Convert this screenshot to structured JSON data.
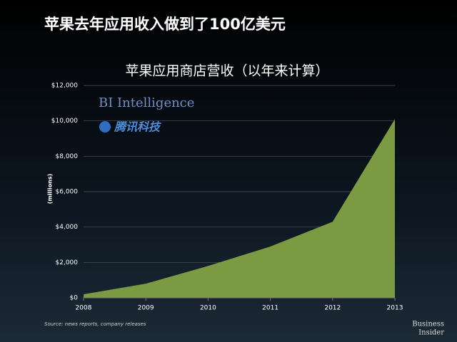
{
  "header": {
    "title": "苹果去年应用收入做到了100亿美元"
  },
  "chart_data": {
    "type": "area",
    "title": "苹果应用商店营收（以年来计算）",
    "ylabel": "(millions)",
    "x": [
      2008,
      2009,
      2010,
      2011,
      2012,
      2013
    ],
    "values": [
      200,
      800,
      1800,
      2900,
      4300,
      10100
    ],
    "color": "#7b9a41",
    "xlim": [
      2008,
      2013
    ],
    "xticks": [
      2008,
      2009,
      2010,
      2011,
      2012,
      2013
    ],
    "ylim": [
      0,
      12000
    ],
    "yticks": [
      {
        "value": 0,
        "label": "$0"
      },
      {
        "value": 2000,
        "label": "$2,000"
      },
      {
        "value": 4000,
        "label": "$4,000"
      },
      {
        "value": 6000,
        "label": "$6,000"
      },
      {
        "value": 8000,
        "label": "$8,000"
      },
      {
        "value": 10000,
        "label": "$10,000"
      },
      {
        "value": 12000,
        "label": "$12,000"
      }
    ],
    "grid": true,
    "source": "Source: news reports, company releases",
    "watermark": "BI Intelligence",
    "logo": "腾讯科技"
  },
  "footer": {
    "brand": [
      "Business",
      "Insider"
    ]
  }
}
